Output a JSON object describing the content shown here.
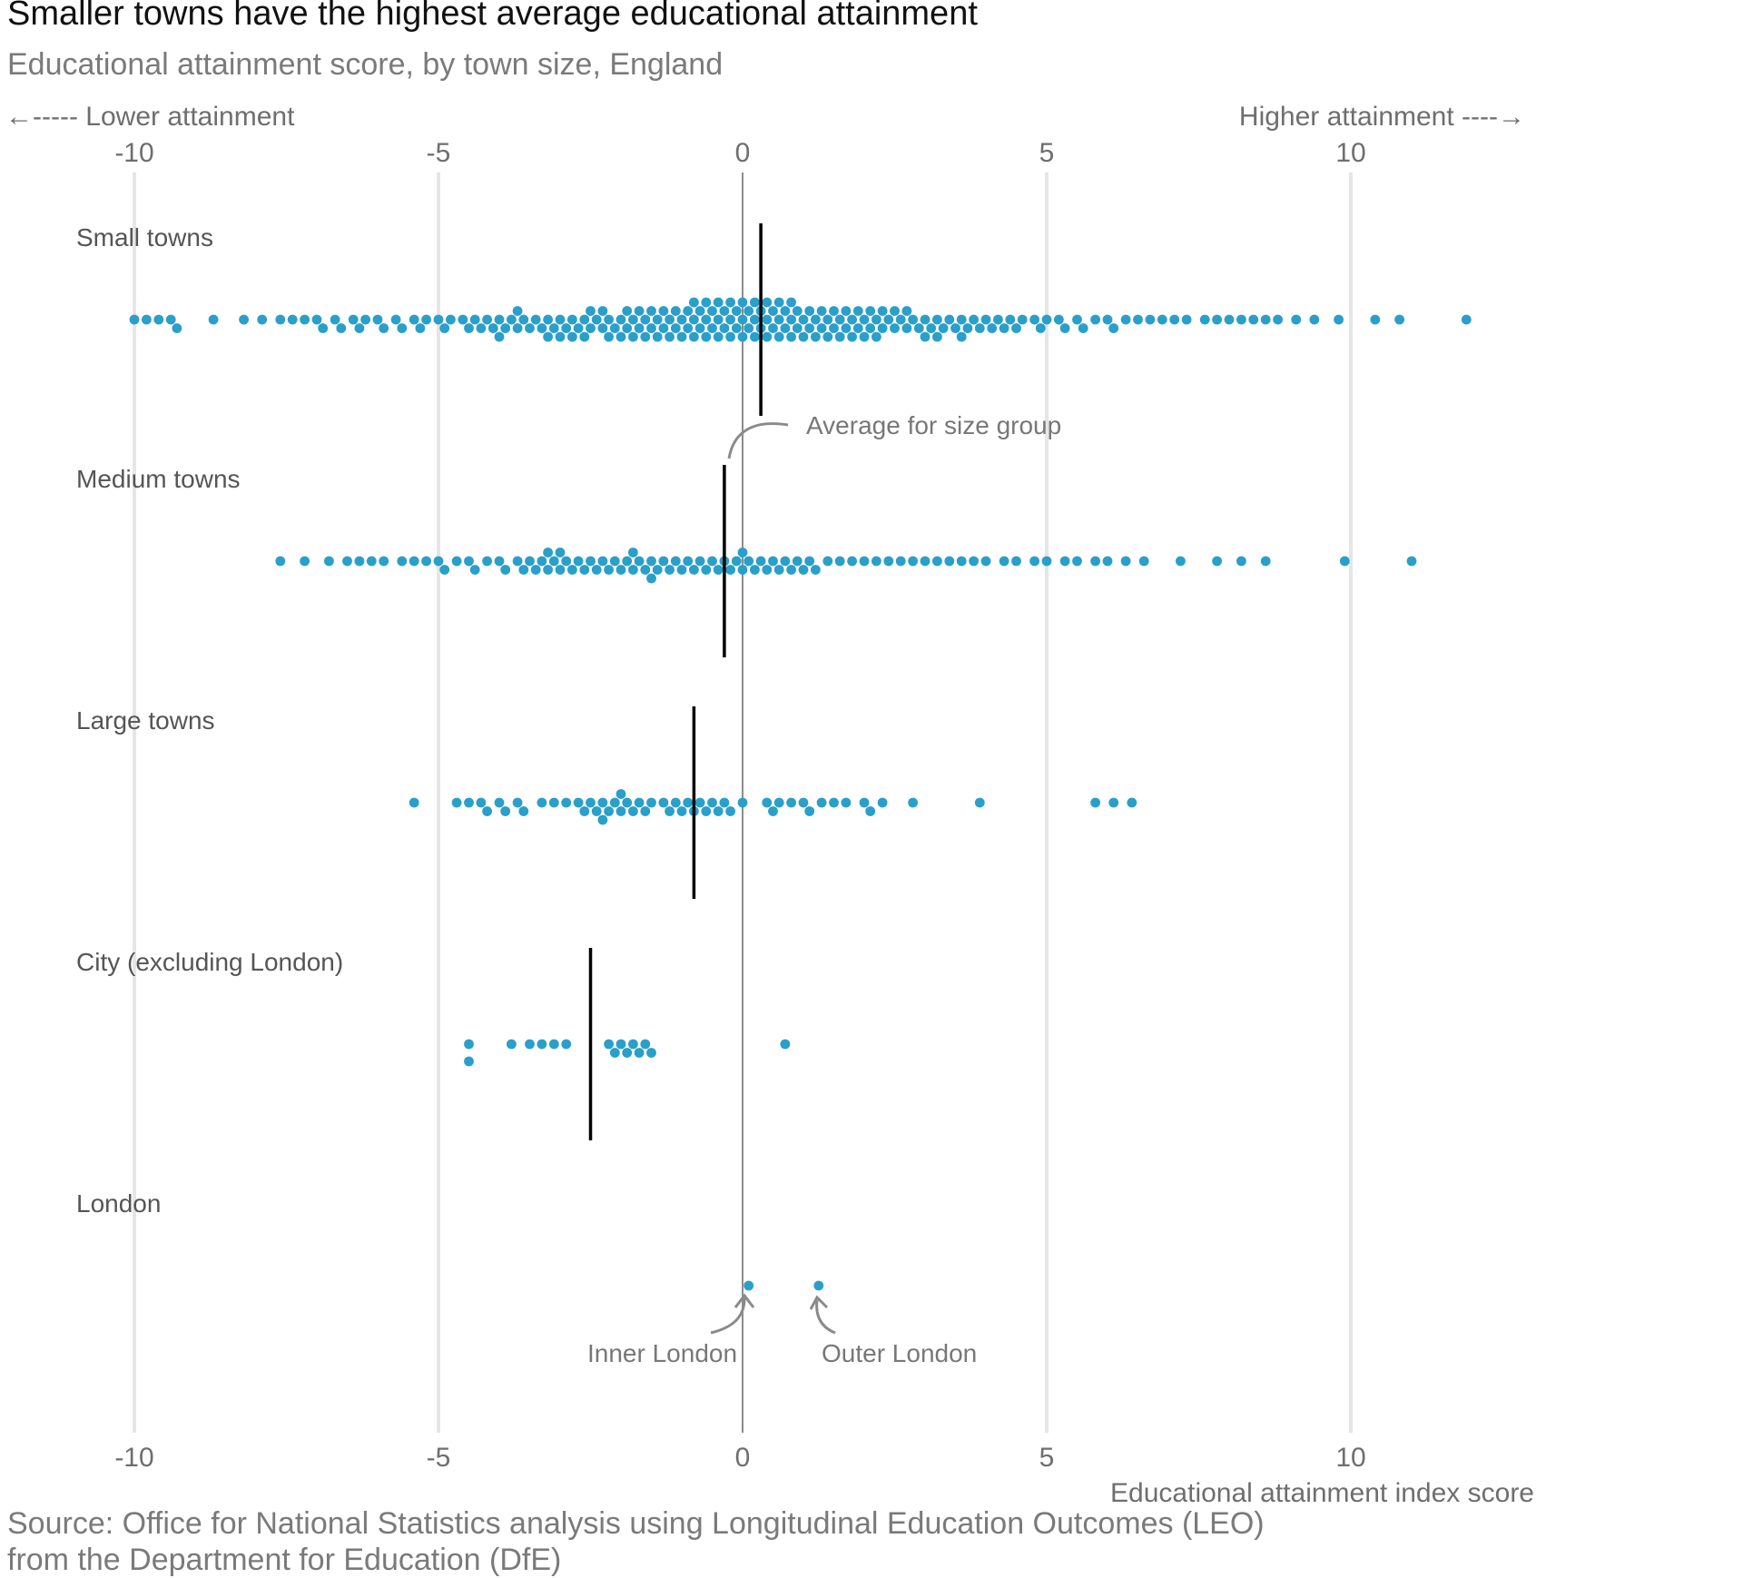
{
  "title": "Smaller towns have the highest average educational attainment",
  "subtitle": "Educational attainment score, by town size, England",
  "direction_labels": {
    "lower": "←----- Lower attainment",
    "higher": "Higher attainment ----→"
  },
  "source": {
    "line1": "Source: Office for National Statistics analysis using Longitudinal Education Outcomes (LEO)",
    "line2": "from the Department for Education (DfE)"
  },
  "annotations": {
    "average": "Average for size group",
    "inner_london": "Inner London",
    "outer_london": "Outer London"
  },
  "colors": {
    "dot": "#2a9fc9",
    "mean_line": "#000000",
    "zero_line": "#8c8c8c",
    "grid": "#e6e6e6"
  },
  "chart_data": {
    "type": "scatter",
    "subtype": "beeswarm",
    "xlabel": "Educational attainment index score",
    "xlim": [
      -10,
      12
    ],
    "xticks": [
      -10,
      -5,
      0,
      5,
      10
    ],
    "tick_labels": [
      "-10",
      "-5",
      "0",
      "5",
      "10"
    ],
    "grid": true,
    "reference_line": 0,
    "groups": [
      {
        "name": "Small towns",
        "mean": 0.3,
        "points": [
          -10.0,
          -9.8,
          -9.6,
          -9.4,
          -9.3,
          -8.7,
          -8.2,
          -7.9,
          -7.6,
          -7.4,
          -7.2,
          -7.0,
          -6.9,
          -6.7,
          -6.6,
          -6.4,
          -6.3,
          -6.2,
          -6.0,
          -5.9,
          -5.7,
          -5.6,
          -5.4,
          -5.3,
          -5.2,
          -5.0,
          -4.9,
          -4.8,
          -4.6,
          -4.5,
          -4.4,
          -4.3,
          -4.2,
          -4.1,
          -4.0,
          -4.0,
          -3.9,
          -3.8,
          -3.7,
          -3.7,
          -3.6,
          -3.5,
          -3.4,
          -3.3,
          -3.2,
          -3.2,
          -3.1,
          -3.0,
          -3.0,
          -2.9,
          -2.8,
          -2.8,
          -2.7,
          -2.6,
          -2.6,
          -2.5,
          -2.5,
          -2.4,
          -2.3,
          -2.3,
          -2.2,
          -2.2,
          -2.1,
          -2.0,
          -2.0,
          -1.9,
          -1.9,
          -1.8,
          -1.8,
          -1.7,
          -1.7,
          -1.6,
          -1.6,
          -1.5,
          -1.5,
          -1.4,
          -1.4,
          -1.3,
          -1.3,
          -1.2,
          -1.2,
          -1.1,
          -1.1,
          -1.0,
          -1.0,
          -0.9,
          -0.9,
          -0.8,
          -0.8,
          -0.8,
          -0.7,
          -0.7,
          -0.6,
          -0.6,
          -0.6,
          -0.5,
          -0.5,
          -0.4,
          -0.4,
          -0.4,
          -0.3,
          -0.3,
          -0.2,
          -0.2,
          -0.2,
          -0.1,
          -0.1,
          0.0,
          0.0,
          0.0,
          0.1,
          0.1,
          0.2,
          0.2,
          0.2,
          0.3,
          0.3,
          0.4,
          0.4,
          0.4,
          0.5,
          0.5,
          0.6,
          0.6,
          0.6,
          0.7,
          0.7,
          0.8,
          0.8,
          0.8,
          0.9,
          0.9,
          1.0,
          1.0,
          1.1,
          1.1,
          1.2,
          1.2,
          1.3,
          1.3,
          1.4,
          1.4,
          1.5,
          1.5,
          1.6,
          1.6,
          1.7,
          1.7,
          1.8,
          1.8,
          1.9,
          1.9,
          2.0,
          2.0,
          2.1,
          2.1,
          2.2,
          2.2,
          2.3,
          2.3,
          2.4,
          2.5,
          2.5,
          2.6,
          2.7,
          2.7,
          2.8,
          2.9,
          3.0,
          3.0,
          3.1,
          3.2,
          3.2,
          3.3,
          3.4,
          3.5,
          3.6,
          3.6,
          3.7,
          3.8,
          3.9,
          4.0,
          4.1,
          4.2,
          4.3,
          4.4,
          4.5,
          4.6,
          4.8,
          4.9,
          5.0,
          5.2,
          5.3,
          5.5,
          5.6,
          5.8,
          6.0,
          6.1,
          6.3,
          6.5,
          6.7,
          6.9,
          7.1,
          7.3,
          7.6,
          7.8,
          8.0,
          8.2,
          8.4,
          8.6,
          8.8,
          9.1,
          9.4,
          9.8,
          10.4,
          10.8,
          11.9
        ]
      },
      {
        "name": "Medium towns",
        "mean": -0.3,
        "points": [
          -7.6,
          -7.2,
          -6.8,
          -6.5,
          -6.3,
          -6.1,
          -5.9,
          -5.6,
          -5.4,
          -5.2,
          -5.0,
          -4.9,
          -4.7,
          -4.5,
          -4.4,
          -4.2,
          -4.0,
          -3.9,
          -3.7,
          -3.6,
          -3.5,
          -3.4,
          -3.3,
          -3.2,
          -3.2,
          -3.1,
          -3.0,
          -3.0,
          -2.9,
          -2.8,
          -2.7,
          -2.6,
          -2.5,
          -2.4,
          -2.3,
          -2.2,
          -2.1,
          -2.0,
          -1.9,
          -1.8,
          -1.8,
          -1.7,
          -1.6,
          -1.5,
          -1.5,
          -1.4,
          -1.3,
          -1.2,
          -1.1,
          -1.0,
          -0.9,
          -0.8,
          -0.7,
          -0.6,
          -0.5,
          -0.4,
          -0.3,
          -0.2,
          -0.1,
          0.0,
          0.0,
          0.1,
          0.2,
          0.3,
          0.4,
          0.5,
          0.6,
          0.7,
          0.8,
          0.9,
          1.0,
          1.1,
          1.2,
          1.4,
          1.6,
          1.8,
          2.0,
          2.2,
          2.4,
          2.6,
          2.8,
          3.0,
          3.2,
          3.4,
          3.6,
          3.8,
          4.0,
          4.3,
          4.5,
          4.8,
          5.0,
          5.3,
          5.5,
          5.8,
          6.0,
          6.3,
          6.6,
          7.2,
          7.8,
          8.2,
          8.6,
          9.9,
          11.0
        ]
      },
      {
        "name": "Large towns",
        "mean": -0.8,
        "points": [
          -5.4,
          -4.7,
          -4.5,
          -4.3,
          -4.2,
          -4.0,
          -3.9,
          -3.7,
          -3.6,
          -3.3,
          -3.1,
          -2.9,
          -2.7,
          -2.6,
          -2.5,
          -2.4,
          -2.3,
          -2.3,
          -2.2,
          -2.1,
          -2.0,
          -2.0,
          -1.9,
          -1.8,
          -1.7,
          -1.6,
          -1.5,
          -1.3,
          -1.2,
          -1.1,
          -1.0,
          -0.9,
          -0.8,
          -0.7,
          -0.6,
          -0.5,
          -0.4,
          -0.3,
          -0.2,
          0.0,
          0.4,
          0.5,
          0.6,
          0.8,
          1.0,
          1.1,
          1.3,
          1.5,
          1.7,
          2.0,
          2.1,
          2.3,
          2.8,
          3.9,
          5.8,
          6.1,
          6.4
        ]
      },
      {
        "name": "City (excluding London)",
        "mean": -2.5,
        "points": [
          -4.5,
          -4.5,
          -3.8,
          -3.5,
          -3.3,
          -3.1,
          -2.9,
          -2.2,
          -2.1,
          -2.0,
          -1.9,
          -1.8,
          -1.7,
          -1.6,
          -1.5,
          0.7
        ]
      },
      {
        "name": "London",
        "mean": null,
        "points": [
          0.1,
          1.25
        ]
      }
    ]
  }
}
